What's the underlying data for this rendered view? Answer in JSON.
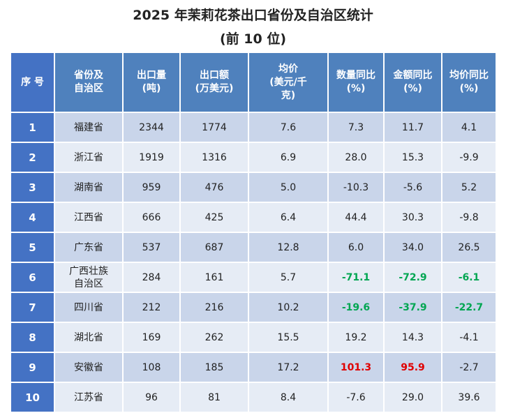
{
  "title_line1": "2025 年茉莉花茶出口省份及自治区统计",
  "title_line2": "(前 10 位)",
  "headers": [
    "序 号",
    "省份及\n自治区",
    "出口量\n(吨)",
    "出口额\n(万美元)",
    "均价\n(美元/千\n克)",
    "数量同比\n(%)",
    "金额同比\n(%)",
    "均价同比\n(%)"
  ],
  "rows": [
    {
      "idx": "1",
      "prov": "福建省",
      "qty": "2344",
      "amt": "1774",
      "price": "7.6",
      "qty_yoy": "7.3",
      "amt_yoy": "11.7",
      "price_yoy": "4.1"
    },
    {
      "idx": "2",
      "prov": "浙江省",
      "qty": "1919",
      "amt": "1316",
      "price": "6.9",
      "qty_yoy": "28.0",
      "amt_yoy": "15.3",
      "price_yoy": "-9.9"
    },
    {
      "idx": "3",
      "prov": "湖南省",
      "qty": "959",
      "amt": "476",
      "price": "5.0",
      "qty_yoy": "-10.3",
      "amt_yoy": "-5.6",
      "price_yoy": "5.2"
    },
    {
      "idx": "4",
      "prov": "江西省",
      "qty": "666",
      "amt": "425",
      "price": "6.4",
      "qty_yoy": "44.4",
      "amt_yoy": "30.3",
      "price_yoy": "-9.8"
    },
    {
      "idx": "5",
      "prov": "广东省",
      "qty": "537",
      "amt": "687",
      "price": "12.8",
      "qty_yoy": "6.0",
      "amt_yoy": "34.0",
      "price_yoy": "26.5"
    },
    {
      "idx": "6",
      "prov": "广西壮族\n自治区",
      "qty": "284",
      "amt": "161",
      "price": "5.7",
      "qty_yoy": "-71.1",
      "amt_yoy": "-72.9",
      "price_yoy": "-6.1",
      "highlight": {
        "qty_yoy": "green",
        "amt_yoy": "green",
        "price_yoy": "green"
      }
    },
    {
      "idx": "7",
      "prov": "四川省",
      "qty": "212",
      "amt": "216",
      "price": "10.2",
      "qty_yoy": "-19.6",
      "amt_yoy": "-37.9",
      "price_yoy": "-22.7",
      "highlight": {
        "qty_yoy": "green",
        "amt_yoy": "green",
        "price_yoy": "green"
      }
    },
    {
      "idx": "8",
      "prov": "湖北省",
      "qty": "169",
      "amt": "262",
      "price": "15.5",
      "qty_yoy": "19.2",
      "amt_yoy": "14.3",
      "price_yoy": "-4.1"
    },
    {
      "idx": "9",
      "prov": "安徽省",
      "qty": "108",
      "amt": "185",
      "price": "17.2",
      "qty_yoy": "101.3",
      "amt_yoy": "95.9",
      "price_yoy": "-2.7",
      "highlight": {
        "qty_yoy": "red",
        "amt_yoy": "red"
      }
    },
    {
      "idx": "10",
      "prov": "江苏省",
      "qty": "96",
      "amt": "81",
      "price": "8.4",
      "qty_yoy": "-7.6",
      "amt_yoy": "29.0",
      "price_yoy": "39.6"
    }
  ],
  "colors": {
    "header_bg": "#4f81bd",
    "index_bg": "#4472c4",
    "row_dark": "#c9d5ea",
    "row_light": "#e6ecf5",
    "green": "#00a651",
    "red": "#e00000"
  }
}
